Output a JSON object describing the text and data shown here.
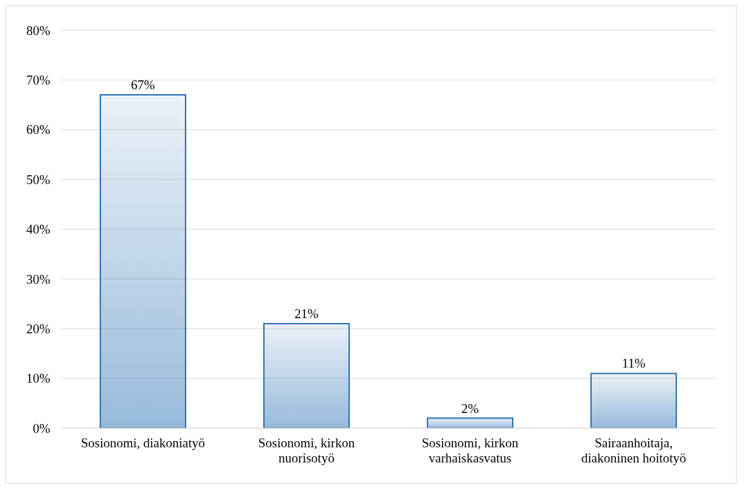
{
  "chart_data": {
    "type": "bar",
    "categories": [
      "Sosionomi, diakoniatyö",
      "Sosionomi, kirkon nuorisotyö",
      "Sosionomi, kirkon varhaiskasvatus",
      "Sairaanhoitaja, diakoninen hoitotyö"
    ],
    "values": [
      67,
      21,
      2,
      11
    ],
    "color": "#2e75b6",
    "value_labels": [
      "67%",
      "21%",
      "2%",
      "11%"
    ],
    "ylim": [
      0,
      80
    ],
    "yticks": [
      {
        "value": 0,
        "label": "0%"
      },
      {
        "value": 10,
        "label": "10%"
      },
      {
        "value": 20,
        "label": "20%"
      },
      {
        "value": 30,
        "label": "30%"
      },
      {
        "value": 40,
        "label": "40%"
      },
      {
        "value": 50,
        "label": "50%"
      },
      {
        "value": 60,
        "label": "60%"
      },
      {
        "value": 70,
        "label": "70%"
      },
      {
        "value": 80,
        "label": "80%"
      }
    ],
    "grid": "y",
    "legend": false
  }
}
